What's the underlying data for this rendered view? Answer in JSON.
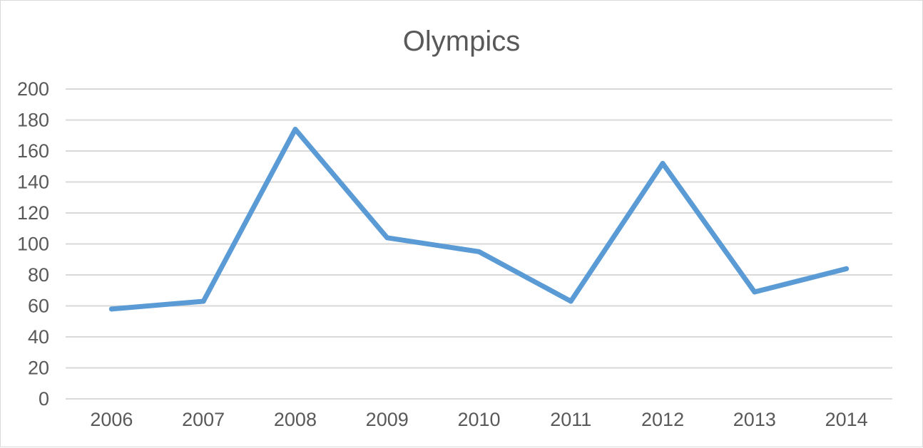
{
  "chart_data": {
    "type": "line",
    "title": "Olympics",
    "xlabel": "",
    "ylabel": "",
    "categories": [
      "2006",
      "2007",
      "2008",
      "2009",
      "2010",
      "2011",
      "2012",
      "2013",
      "2014"
    ],
    "series": [
      {
        "values": [
          58,
          63,
          174,
          104,
          95,
          63,
          152,
          69,
          84
        ],
        "color": "#5b9bd5"
      }
    ],
    "ylim": [
      0,
      200
    ],
    "yticks": [
      0,
      20,
      40,
      60,
      80,
      100,
      120,
      140,
      160,
      180,
      200
    ],
    "grid": true,
    "legend": "none"
  }
}
